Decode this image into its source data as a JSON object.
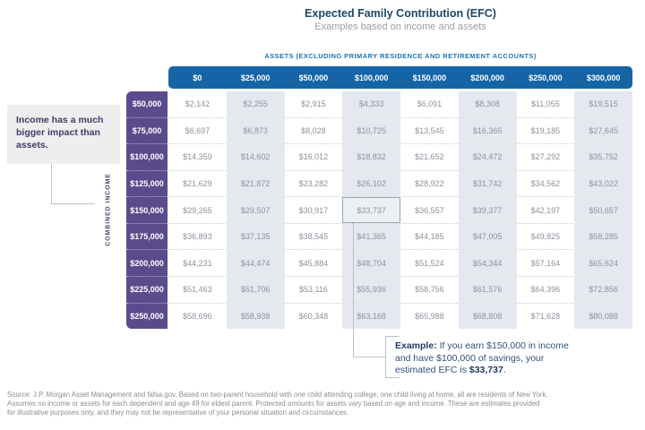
{
  "page": {
    "title": "Expected Family Contribution (EFC)",
    "subtitle": "Examples based on income and assets"
  },
  "callout": {
    "text": "Income has a much bigger impact than assets."
  },
  "example": {
    "label": "Example:",
    "text_before": " If you earn $150,000 in income and have $100,000 of savings, your estimated EFC is ",
    "value_bold": "$33,737",
    "text_after": "."
  },
  "footer": {
    "lines": [
      "Source: J.P. Morgan Asset Management and fafsa.gov. Based on two-parent household with one child attending college, one child living at home, all are residents of New York.",
      "Assumes no income or assets for each dependent and age 49 for eldest parent. Protected amounts for assets vary based on age and income. These are estimates provided",
      "for illustrative purposes only, and they may not be representative of your personal situation and circumstances."
    ]
  },
  "colors": {
    "header_blue": "#1565a6",
    "income_purple": "#5b4b8d",
    "shaded_column": "#e5e8ee",
    "title_navy": "#1f4766",
    "assets_label_blue": "#1b75bb"
  },
  "chart_data": {
    "type": "table",
    "title": "Expected Family Contribution (EFC)",
    "subtitle": "Examples based on income and assets",
    "column_group_label": "ASSETS (EXCLUDING PRIMARY RESIDENCE AND RETIREMENT ACCOUNTS)",
    "row_group_label": "COMBINED INCOME",
    "columns": [
      "$0",
      "$25,000",
      "$50,000",
      "$100,000",
      "$150,000",
      "$200,000",
      "$250,000",
      "$300,000"
    ],
    "rows": [
      "$50,000",
      "$75,000",
      "$100,000",
      "$125,000",
      "$150,000",
      "$175,000",
      "$200,000",
      "$225,000",
      "$250,000"
    ],
    "values": [
      [
        "$2,142",
        "$2,255",
        "$2,915",
        "$4,333",
        "$6,091",
        "$8,308",
        "$11,055",
        "$19,515"
      ],
      [
        "$6,697",
        "$6,873",
        "$8,028",
        "$10,725",
        "$13,545",
        "$16,365",
        "$19,185",
        "$27,645"
      ],
      [
        "$14,359",
        "$14,602",
        "$16,012",
        "$18,832",
        "$21,652",
        "$24,472",
        "$27,292",
        "$35,752"
      ],
      [
        "$21,629",
        "$21,872",
        "$23,282",
        "$26,102",
        "$28,922",
        "$31,742",
        "$34,562",
        "$43,022"
      ],
      [
        "$29,265",
        "$29,507",
        "$30,917",
        "$33,737",
        "$36,557",
        "$39,377",
        "$42,197",
        "$50,657"
      ],
      [
        "$36,893",
        "$37,135",
        "$38,545",
        "$41,365",
        "$44,185",
        "$47,005",
        "$49,825",
        "$58,285"
      ],
      [
        "$44,231",
        "$44,474",
        "$45,884",
        "$48,704",
        "$51,524",
        "$54,344",
        "$57,164",
        "$65,624"
      ],
      [
        "$51,463",
        "$51,706",
        "$53,116",
        "$55,936",
        "$58,756",
        "$61,576",
        "$64,396",
        "$72,856"
      ],
      [
        "$58,696",
        "$58,938",
        "$60,348",
        "$63,168",
        "$65,988",
        "$68,808",
        "$71,628",
        "$80,088"
      ]
    ],
    "highlighted_cell": {
      "row": "$150,000",
      "column": "$100,000",
      "value": "$33,737"
    },
    "layout": {
      "shaded_columns": [
        "$25,000",
        "$100,000",
        "$200,000",
        "$300,000"
      ],
      "grid": "dotted row separators"
    }
  }
}
